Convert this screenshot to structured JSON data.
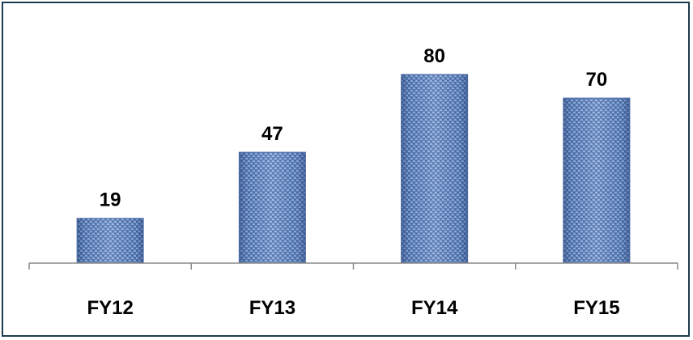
{
  "chart_data": {
    "type": "bar",
    "categories": [
      "FY12",
      "FY13",
      "FY14",
      "FY15"
    ],
    "values": [
      19,
      47,
      80,
      70
    ],
    "title": "",
    "xlabel": "",
    "ylabel": "",
    "ylim": [
      0,
      80
    ],
    "grid": false,
    "data_labels": true,
    "bar_color": "#6f8fc4"
  }
}
